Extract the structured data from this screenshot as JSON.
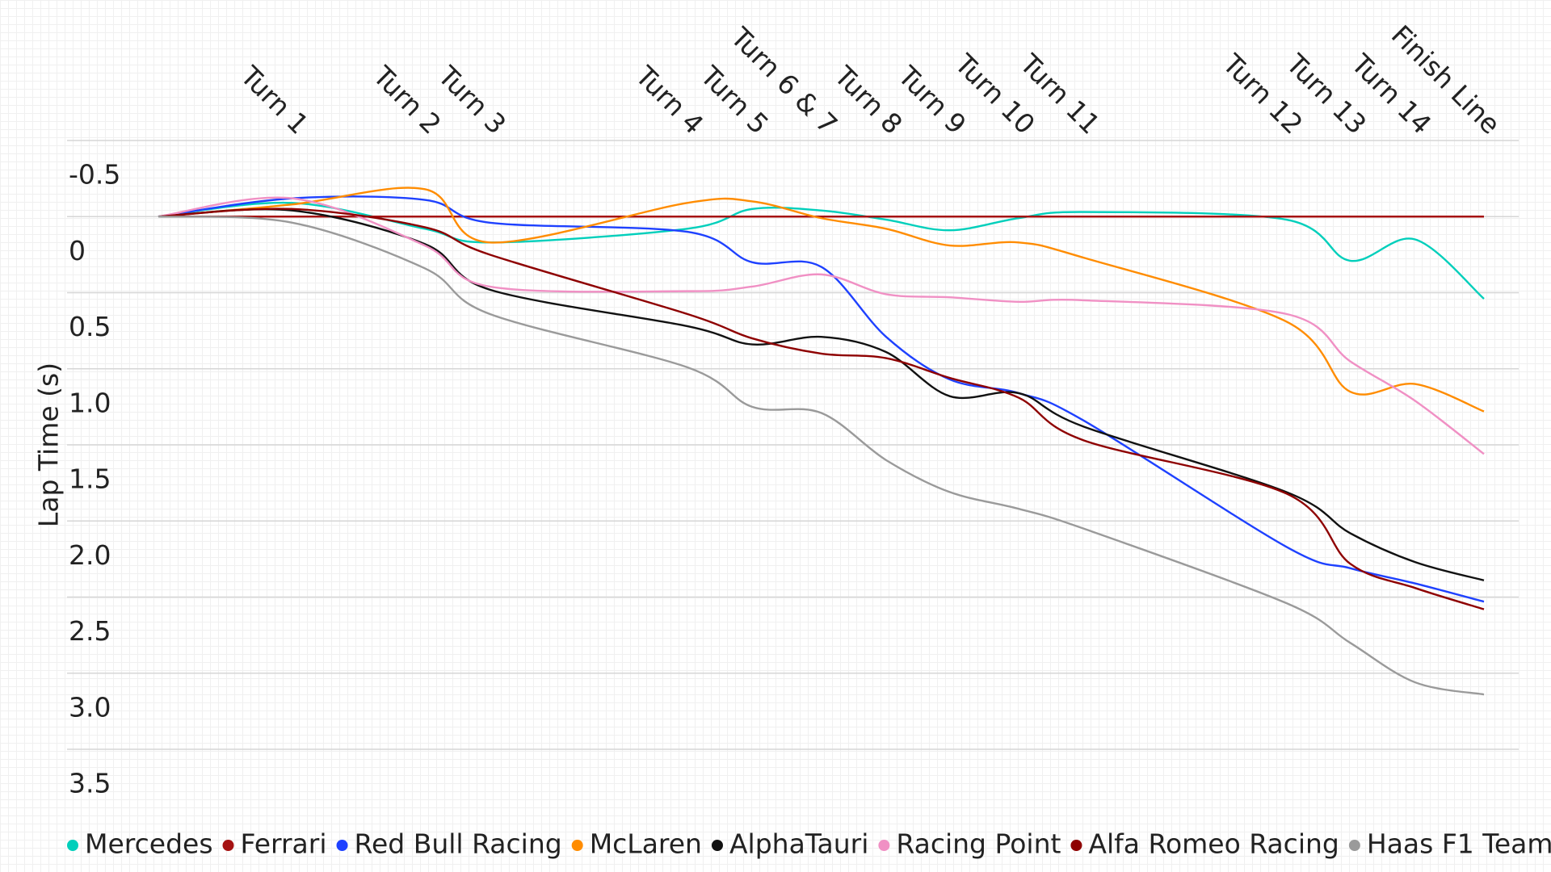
{
  "chart_data": {
    "type": "line",
    "smooth": true,
    "y_label": "Lap Time (s)",
    "x": [
      0,
      10.1,
      20.1,
      25,
      39.9,
      44.8,
      50,
      54.9,
      59.7,
      64.9,
      69.8,
      85.1,
      89.9,
      94.8,
      100
    ],
    "xlim": [
      0,
      100
    ],
    "xticks": [
      {
        "value": 10.1,
        "label": "Turn 1"
      },
      {
        "value": 20.1,
        "label": "Turn 2"
      },
      {
        "value": 25,
        "label": "Turn 3"
      },
      {
        "value": 39.9,
        "label": "Turn 4"
      },
      {
        "value": 44.8,
        "label": "Turn 5"
      },
      {
        "value": 50,
        "label": "Turn 6 & 7"
      },
      {
        "value": 54.9,
        "label": "Turn 8"
      },
      {
        "value": 59.7,
        "label": "Turn 9"
      },
      {
        "value": 64.9,
        "label": "Turn 10"
      },
      {
        "value": 69.8,
        "label": "Turn 11"
      },
      {
        "value": 85.1,
        "label": "Turn 12"
      },
      {
        "value": 89.9,
        "label": "Turn 13"
      },
      {
        "value": 94.8,
        "label": "Turn 14"
      },
      {
        "value": 100,
        "label": "Finish Line"
      }
    ],
    "ylim": [
      -0.5,
      3.5
    ],
    "y_reversed": true,
    "yticks": [
      -0.5,
      0,
      0.5,
      {
        "value": 1,
        "label": "1.0"
      },
      1.5,
      {
        "value": 2,
        "label": "2.0"
      },
      2.5,
      {
        "value": 3,
        "label": "3.0"
      },
      3.5
    ],
    "grid": true,
    "legend": "bottom",
    "series": [
      {
        "name": "Mercedes",
        "color": "#00cfbb",
        "values": [
          0,
          -0.09,
          0.08,
          0.17,
          0.08,
          -0.05,
          -0.04,
          0.02,
          0.09,
          0.01,
          -0.03,
          0.02,
          0.29,
          0.15,
          0.54
        ]
      },
      {
        "name": "Ferrari",
        "color": "#a51212",
        "values": [
          0,
          0,
          0,
          0,
          0,
          0,
          0,
          0,
          0,
          0,
          0,
          0,
          0,
          0,
          0
        ]
      },
      {
        "name": "Red Bull Racing",
        "color": "#1e41ff",
        "values": [
          0,
          -0.12,
          -0.11,
          0.04,
          0.1,
          0.3,
          0.33,
          0.79,
          1.07,
          1.16,
          1.34,
          2.17,
          2.31,
          2.41,
          2.53
        ]
      },
      {
        "name": "McLaren",
        "color": "#ff8c00",
        "values": [
          0,
          -0.08,
          -0.18,
          0.17,
          -0.09,
          -0.1,
          0.01,
          0.08,
          0.19,
          0.17,
          0.27,
          0.69,
          1.15,
          1.1,
          1.28
        ]
      },
      {
        "name": "AlphaTauri",
        "color": "#111111",
        "values": [
          0,
          -0.04,
          0.18,
          0.48,
          0.72,
          0.84,
          0.79,
          0.89,
          1.18,
          1.16,
          1.38,
          1.81,
          2.08,
          2.27,
          2.39
        ]
      },
      {
        "name": "Racing Point",
        "color": "#f090c4",
        "values": [
          0,
          -0.12,
          0.19,
          0.46,
          0.49,
          0.46,
          0.38,
          0.51,
          0.53,
          0.56,
          0.55,
          0.64,
          0.95,
          1.21,
          1.56
        ]
      },
      {
        "name": "Alfa Romeo Racing",
        "color": "#8e0000",
        "values": [
          0,
          -0.05,
          0.07,
          0.25,
          0.64,
          0.8,
          0.9,
          0.93,
          1.06,
          1.19,
          1.47,
          1.82,
          2.28,
          2.44,
          2.58
        ]
      },
      {
        "name": "Haas F1 Team",
        "color": "#9a9a9a",
        "values": [
          0,
          0.04,
          0.34,
          0.64,
          0.99,
          1.25,
          1.29,
          1.6,
          1.81,
          1.92,
          2.05,
          2.54,
          2.8,
          3.06,
          3.14
        ]
      }
    ]
  }
}
